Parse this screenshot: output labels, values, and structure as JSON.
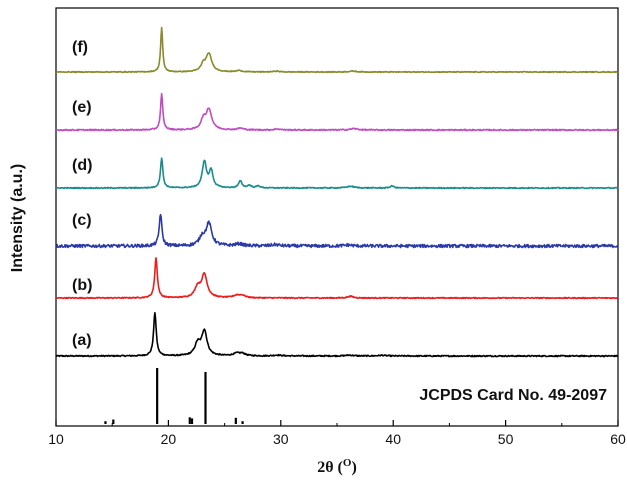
{
  "chart_data": {
    "type": "line",
    "xlabel": "2θ (O)",
    "xlabel_main": "2θ (",
    "xlabel_sup": "O",
    "xlabel_end": ")",
    "ylabel": "Intensity (a.u.)",
    "xlim": [
      10,
      60
    ],
    "x_ticks": [
      "10",
      "20",
      "30",
      "40",
      "50",
      "60"
    ],
    "grid": false,
    "reference": {
      "label": "JCPDS Card No. 49-2097",
      "peaks": [
        {
          "x": 14.4,
          "intensity": 0.05
        },
        {
          "x": 15.1,
          "intensity": 0.08
        },
        {
          "x": 19.0,
          "intensity": 1.0
        },
        {
          "x": 21.9,
          "intensity": 0.12
        },
        {
          "x": 22.1,
          "intensity": 0.1
        },
        {
          "x": 23.3,
          "intensity": 0.93
        },
        {
          "x": 26.0,
          "intensity": 0.11
        },
        {
          "x": 26.6,
          "intensity": 0.05
        }
      ]
    },
    "series": [
      {
        "name": "(a)",
        "color": "#000000",
        "baseline": 0.0,
        "noise": 0.035,
        "peaks": [
          [
            18.8,
            2.55,
            0.14
          ],
          [
            22.6,
            0.7,
            0.3
          ],
          [
            23.2,
            1.45,
            0.28
          ],
          [
            26.1,
            0.15,
            0.4
          ],
          [
            26.6,
            0.12,
            0.3
          ],
          [
            29.7,
            0.05,
            0.4
          ],
          [
            36.1,
            0.05,
            0.4
          ],
          [
            39.0,
            0.04,
            0.4
          ]
        ]
      },
      {
        "name": "(b)",
        "color": "#ee1b1b",
        "baseline": 0.0,
        "noise": 0.03,
        "peaks": [
          [
            18.9,
            2.35,
            0.14
          ],
          [
            22.6,
            0.6,
            0.3
          ],
          [
            23.2,
            1.35,
            0.3
          ],
          [
            26.1,
            0.15,
            0.4
          ],
          [
            26.6,
            0.12,
            0.3
          ],
          [
            36.2,
            0.1,
            0.3
          ]
        ]
      },
      {
        "name": "(c)",
        "color": "#2b3aa8",
        "baseline": 0.0,
        "noise": 0.09,
        "peaks": [
          [
            19.3,
            1.9,
            0.14
          ],
          [
            23.0,
            0.5,
            0.3
          ],
          [
            23.6,
            1.3,
            0.3
          ],
          [
            26.3,
            0.12,
            0.4
          ],
          [
            29.5,
            0.08,
            0.4
          ],
          [
            36.0,
            0.06,
            0.4
          ]
        ]
      },
      {
        "name": "(d)",
        "color": "#1a8c8c",
        "baseline": 0.0,
        "noise": 0.03,
        "peaks": [
          [
            19.4,
            1.75,
            0.13
          ],
          [
            23.2,
            1.55,
            0.22
          ],
          [
            23.8,
            1.0,
            0.2
          ],
          [
            26.4,
            0.4,
            0.18
          ],
          [
            27.2,
            0.15,
            0.2
          ],
          [
            28.0,
            0.12,
            0.2
          ],
          [
            36.2,
            0.1,
            0.4
          ],
          [
            39.9,
            0.12,
            0.2
          ]
        ]
      },
      {
        "name": "(e)",
        "color": "#c04cc4",
        "baseline": 0.0,
        "noise": 0.035,
        "peaks": [
          [
            19.4,
            2.1,
            0.12
          ],
          [
            23.1,
            0.55,
            0.25
          ],
          [
            23.6,
            1.2,
            0.3
          ],
          [
            26.4,
            0.1,
            0.3
          ],
          [
            29.7,
            0.06,
            0.3
          ],
          [
            36.5,
            0.08,
            0.4
          ]
        ]
      },
      {
        "name": "(f)",
        "color": "#8a8a2a",
        "baseline": 0.0,
        "noise": 0.025,
        "peaks": [
          [
            19.4,
            2.6,
            0.11
          ],
          [
            23.1,
            0.4,
            0.25
          ],
          [
            23.6,
            1.05,
            0.3
          ],
          [
            26.3,
            0.08,
            0.3
          ],
          [
            29.6,
            0.05,
            0.3
          ],
          [
            36.4,
            0.05,
            0.4
          ]
        ]
      }
    ]
  }
}
